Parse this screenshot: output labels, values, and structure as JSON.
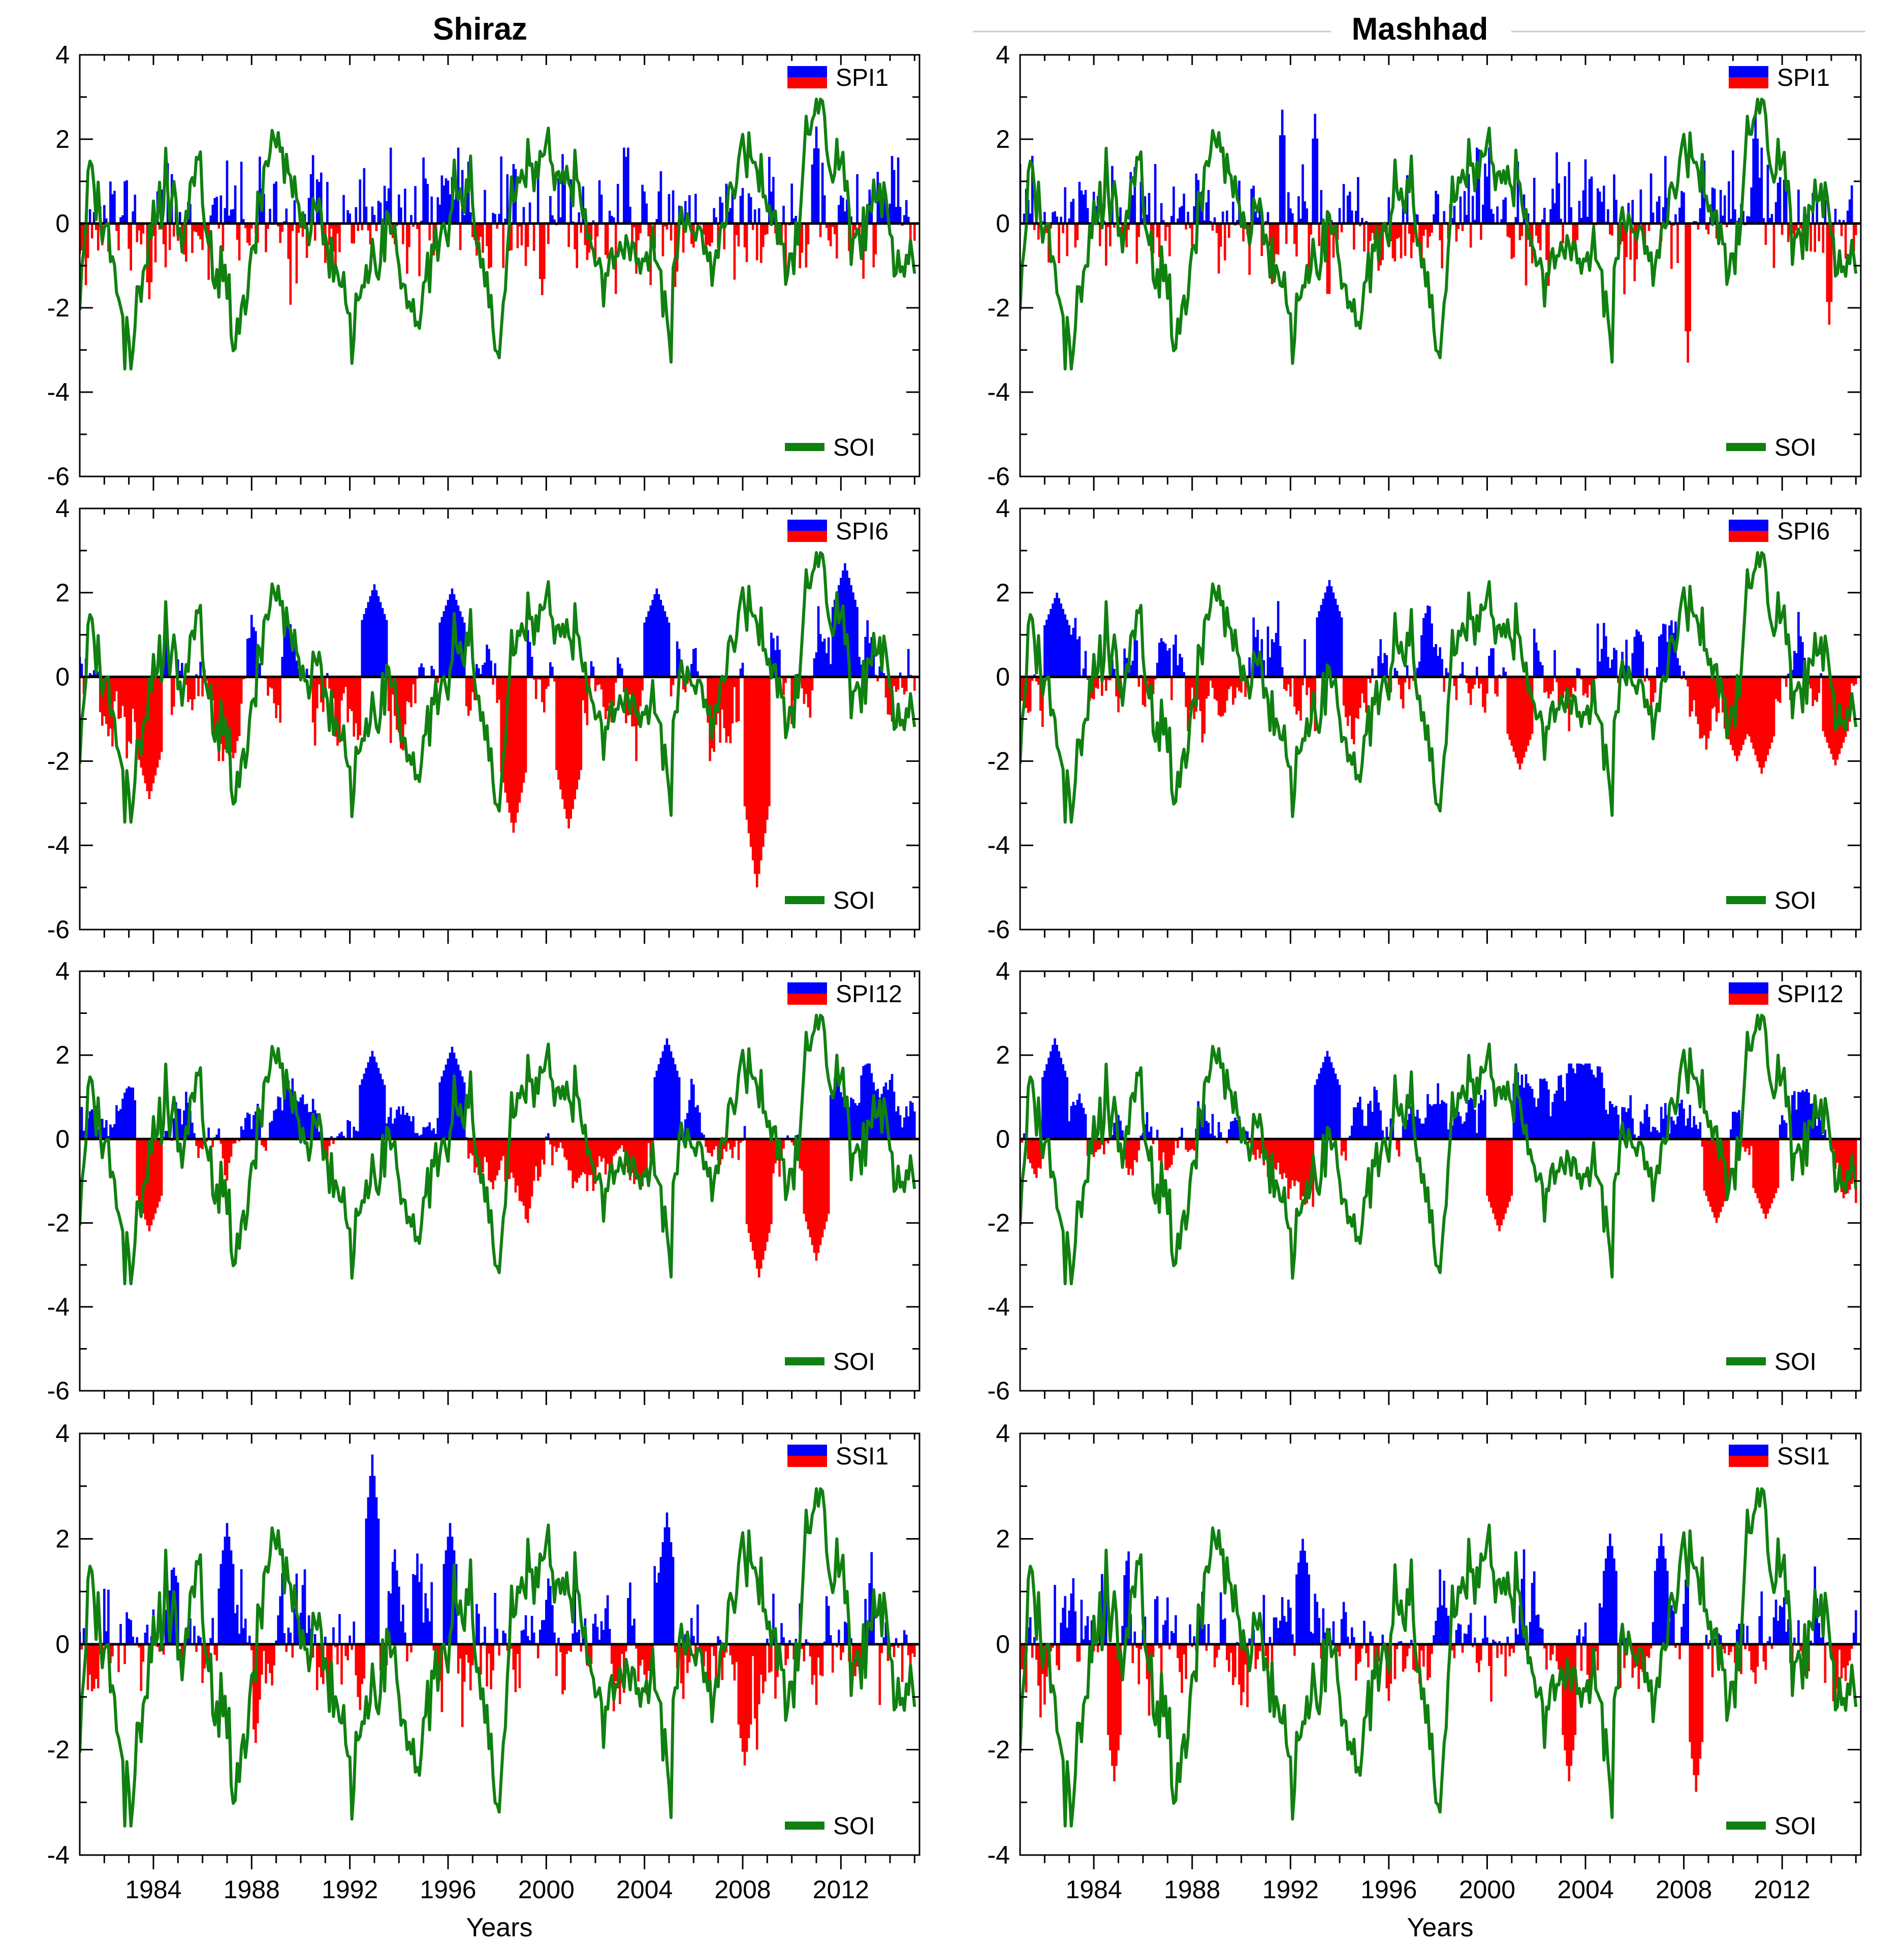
{
  "figure": {
    "columns": [
      "Shiraz",
      "Mashhad"
    ],
    "xlabel": "Years",
    "x_ticks": [
      1984,
      1988,
      1992,
      1996,
      2000,
      2004,
      2008,
      2012
    ],
    "xlim": [
      1981,
      2015.2
    ],
    "colors": {
      "positive": "#0000ff",
      "negative": "#ff0000",
      "soi": "#108010",
      "axis": "#000000"
    }
  },
  "chart_data": [
    {
      "type": "area",
      "station": "Shiraz",
      "index": "SPI1",
      "legend": "SPI1",
      "soi_legend": "SOI",
      "ylim": [
        -6,
        4
      ],
      "yticks": [
        "4",
        "2",
        "0",
        "-2",
        "-4",
        "-6"
      ],
      "profile": {
        "pos_amp": 0.9,
        "neg_amp": 0.8,
        "persistence": 0.15,
        "seed": 11
      },
      "extremes": [
        [
          2011.0,
          2.3
        ],
        [
          1983.8,
          -1.8
        ],
        [
          1999.8,
          -1.7
        ]
      ]
    },
    {
      "type": "area",
      "station": "Mashhad",
      "index": "SPI1",
      "legend": "SPI1",
      "soi_legend": "SOI",
      "ylim": [
        -6,
        4
      ],
      "yticks": [
        "4",
        "2",
        "0",
        "-2",
        "-4",
        "-6"
      ],
      "profile": {
        "pos_amp": 0.9,
        "neg_amp": 0.8,
        "persistence": 0.15,
        "seed": 23
      },
      "extremes": [
        [
          1991.7,
          2.7
        ],
        [
          1993.0,
          2.6
        ],
        [
          2010.9,
          2.6
        ],
        [
          2008.2,
          -3.3
        ],
        [
          2013.9,
          -2.4
        ]
      ]
    },
    {
      "type": "area",
      "station": "Shiraz",
      "index": "SPI6",
      "legend": "SPI6",
      "soi_legend": "SOI",
      "ylim": [
        -6,
        4
      ],
      "yticks": [
        "4",
        "2",
        "0",
        "-2",
        "-4",
        "-6"
      ],
      "profile": {
        "pos_amp": 0.9,
        "neg_amp": 1.0,
        "persistence": 0.82,
        "seed": 37
      },
      "extremes": [
        [
          1993.0,
          2.2
        ],
        [
          1996.2,
          2.1
        ],
        [
          2004.5,
          2.1
        ],
        [
          2012.2,
          2.7
        ],
        [
          2008.6,
          -5.0
        ],
        [
          1998.7,
          -3.7
        ],
        [
          2000.9,
          -3.6
        ],
        [
          1983.8,
          -2.9
        ]
      ]
    },
    {
      "type": "area",
      "station": "Mashhad",
      "index": "SPI6",
      "legend": "SPI6",
      "soi_legend": "SOI",
      "ylim": [
        -6,
        4
      ],
      "yticks": [
        "4",
        "2",
        "0",
        "-2",
        "-4",
        "-6"
      ],
      "profile": {
        "pos_amp": 1.0,
        "neg_amp": 0.9,
        "persistence": 0.82,
        "seed": 41
      },
      "extremes": [
        [
          1982.5,
          2.0
        ],
        [
          1993.6,
          2.3
        ],
        [
          2001.3,
          -2.2
        ],
        [
          2010.2,
          -2.0
        ],
        [
          2011.2,
          -2.3
        ],
        [
          2014.2,
          -2.1
        ]
      ]
    },
    {
      "type": "area",
      "station": "Shiraz",
      "index": "SPI12",
      "legend": "SPI12",
      "soi_legend": "SOI",
      "ylim": [
        -6,
        4
      ],
      "yticks": [
        "4",
        "2",
        "0",
        "-2",
        "-4",
        "-6"
      ],
      "profile": {
        "pos_amp": 0.8,
        "neg_amp": 0.8,
        "persistence": 0.93,
        "seed": 53
      },
      "extremes": [
        [
          1992.9,
          2.1
        ],
        [
          1996.2,
          2.2
        ],
        [
          2004.9,
          2.4
        ],
        [
          2008.7,
          -3.3
        ],
        [
          2011.0,
          -2.9
        ],
        [
          1983.8,
          -2.2
        ]
      ]
    },
    {
      "type": "area",
      "station": "Mashhad",
      "index": "SPI12",
      "legend": "SPI12",
      "soi_legend": "SOI",
      "ylim": [
        -6,
        4
      ],
      "yticks": [
        "4",
        "2",
        "0",
        "-2",
        "-4",
        "-6"
      ],
      "profile": {
        "pos_amp": 1.0,
        "neg_amp": 0.9,
        "persistence": 0.93,
        "seed": 61
      },
      "extremes": [
        [
          1982.4,
          2.4
        ],
        [
          1993.5,
          2.1
        ],
        [
          2000.5,
          -2.2
        ],
        [
          2009.3,
          -2.0
        ],
        [
          2011.3,
          -1.9
        ]
      ]
    },
    {
      "type": "area",
      "station": "Shiraz",
      "index": "SSI1",
      "legend": "SSI1",
      "soi_legend": "SOI",
      "ylim": [
        -4,
        4
      ],
      "yticks": [
        "4",
        "2",
        "0",
        "-2",
        "-4"
      ],
      "profile": {
        "pos_amp": 0.9,
        "neg_amp": 0.8,
        "persistence": 0.6,
        "seed": 71
      },
      "extremes": [
        [
          1992.9,
          3.6
        ],
        [
          1987.0,
          2.3
        ],
        [
          1996.1,
          2.3
        ],
        [
          2004.9,
          2.5
        ],
        [
          2008.1,
          -2.3
        ]
      ]
    },
    {
      "type": "area",
      "station": "Mashhad",
      "index": "SSI1",
      "legend": "SSI1",
      "soi_legend": "SOI",
      "ylim": [
        -4,
        4
      ],
      "yticks": [
        "4",
        "2",
        "0",
        "-2",
        "-4"
      ],
      "profile": {
        "pos_amp": 0.8,
        "neg_amp": 0.8,
        "persistence": 0.6,
        "seed": 83
      },
      "extremes": [
        [
          1992.5,
          2.0
        ],
        [
          2005.0,
          2.1
        ],
        [
          2007.1,
          2.1
        ],
        [
          1984.8,
          -2.6
        ],
        [
          2008.5,
          -2.8
        ],
        [
          2003.3,
          -2.6
        ]
      ]
    }
  ]
}
